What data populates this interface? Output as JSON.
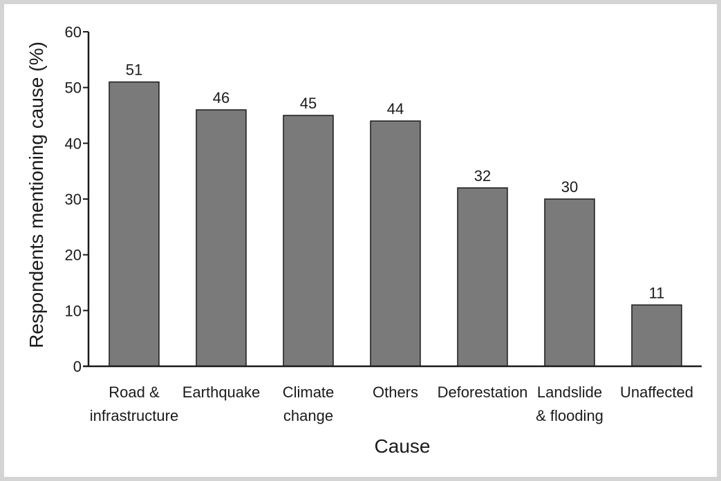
{
  "chart_data": {
    "type": "bar",
    "xlabel": "Cause",
    "ylabel": "Respondents mentioning cause (%)",
    "ylim": [
      0,
      60
    ],
    "yticks": [
      0,
      10,
      20,
      30,
      40,
      50,
      60
    ],
    "categories": [
      [
        "Road &",
        "infrastructure"
      ],
      [
        "Earthquake"
      ],
      [
        "Climate",
        "change"
      ],
      [
        "Others"
      ],
      [
        "Deforestation"
      ],
      [
        "Landslide",
        "& flooding"
      ],
      [
        "Unaffected"
      ]
    ],
    "values": [
      51,
      46,
      45,
      44,
      32,
      30,
      11
    ],
    "data_labels": [
      "51",
      "46",
      "45",
      "44",
      "32",
      "30",
      "11"
    ],
    "grid": false,
    "bar_color": "#7a7a7a",
    "bar_edge_color": "#1a1a1a",
    "frame_color": "#d4d4d4"
  }
}
